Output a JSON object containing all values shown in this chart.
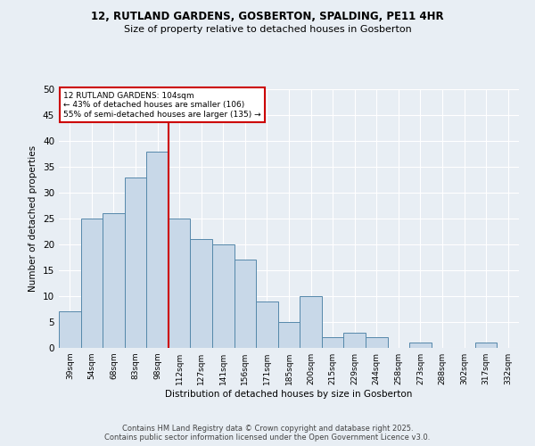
{
  "title1": "12, RUTLAND GARDENS, GOSBERTON, SPALDING, PE11 4HR",
  "title2": "Size of property relative to detached houses in Gosberton",
  "xlabel": "Distribution of detached houses by size in Gosberton",
  "ylabel": "Number of detached properties",
  "bar_labels": [
    "39sqm",
    "54sqm",
    "68sqm",
    "83sqm",
    "98sqm",
    "112sqm",
    "127sqm",
    "141sqm",
    "156sqm",
    "171sqm",
    "185sqm",
    "200sqm",
    "215sqm",
    "229sqm",
    "244sqm",
    "258sqm",
    "273sqm",
    "288sqm",
    "302sqm",
    "317sqm",
    "332sqm"
  ],
  "bar_values": [
    7,
    25,
    26,
    33,
    38,
    25,
    21,
    20,
    17,
    9,
    5,
    10,
    2,
    3,
    2,
    0,
    1,
    0,
    0,
    1,
    0
  ],
  "bar_color": "#c8d8e8",
  "bar_edge_color": "#5588aa",
  "ylim": [
    0,
    50
  ],
  "yticks": [
    0,
    5,
    10,
    15,
    20,
    25,
    30,
    35,
    40,
    45,
    50
  ],
  "property_line_x": 4.5,
  "property_label": "12 RUTLAND GARDENS: 104sqm",
  "annotation_line1": "← 43% of detached houses are smaller (106)",
  "annotation_line2": "55% of semi-detached houses are larger (135) →",
  "annotation_box_color": "#ffffff",
  "annotation_box_edge": "#cc0000",
  "red_line_color": "#cc0000",
  "footer1": "Contains HM Land Registry data © Crown copyright and database right 2025.",
  "footer2": "Contains public sector information licensed under the Open Government Licence v3.0.",
  "bg_color": "#e8eef4",
  "plot_bg_color": "#e8eef4"
}
